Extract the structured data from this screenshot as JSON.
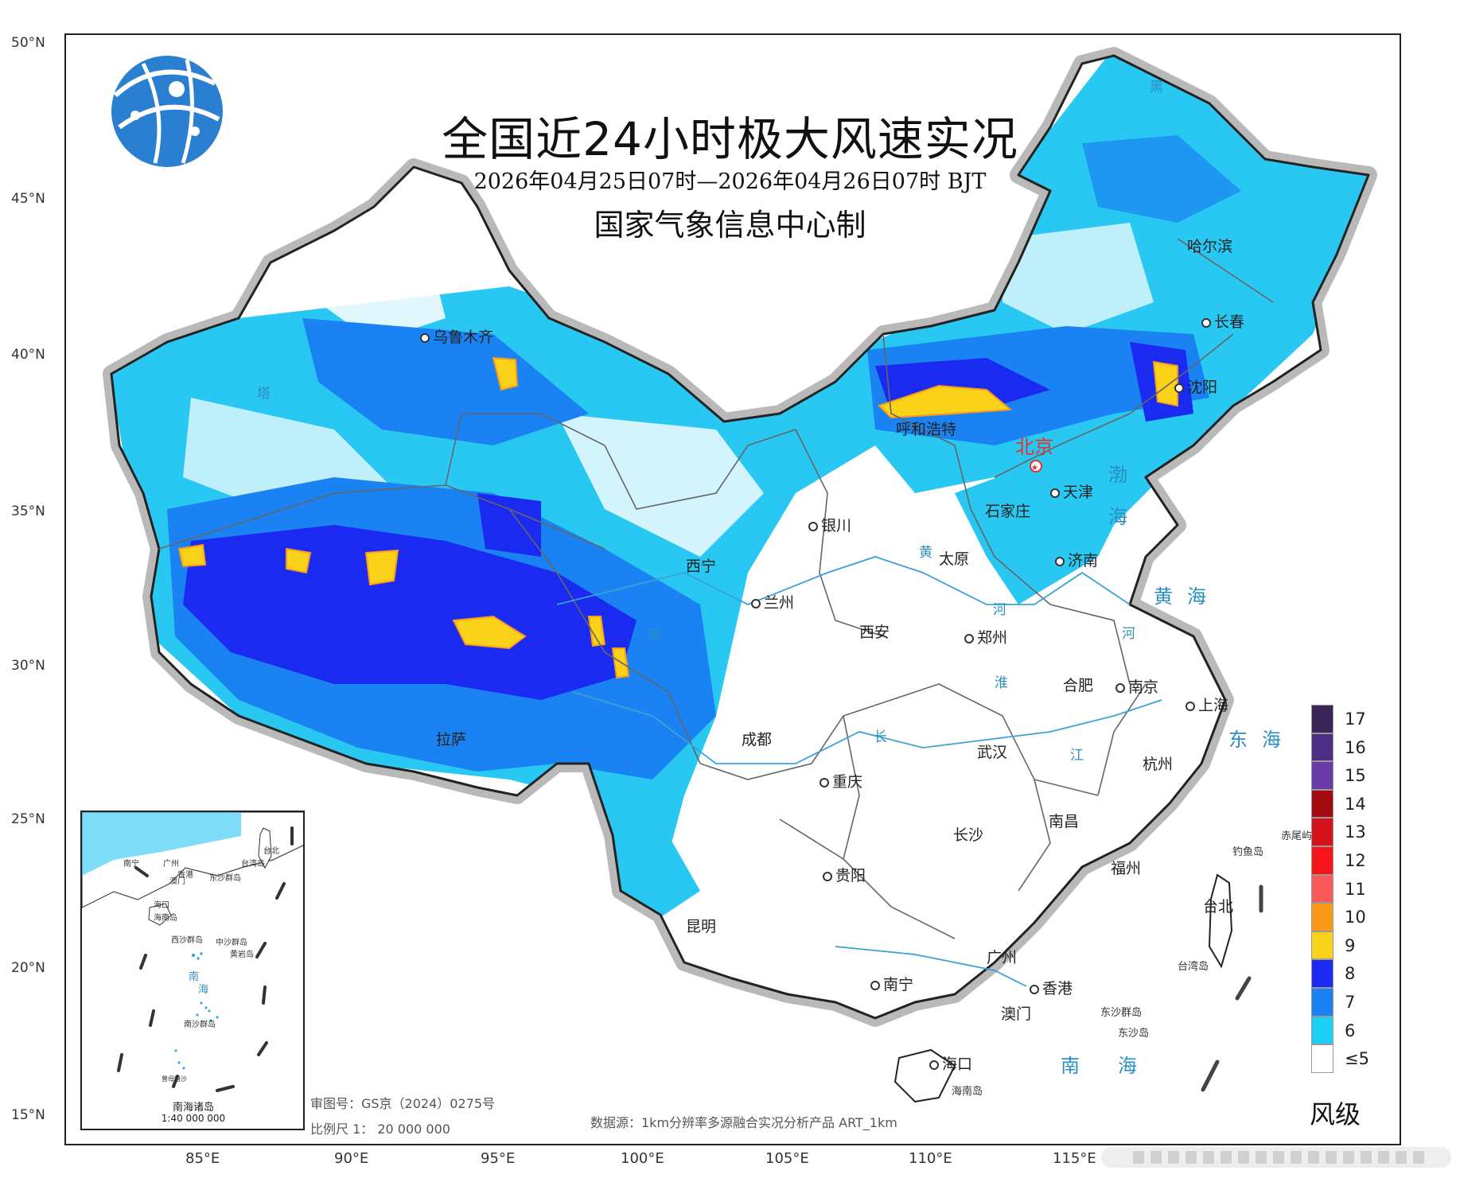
{
  "map": {
    "title": "全国近24小时极大风速实况",
    "time_range": "2026年04月25日07时—2026年04月26日07时 BJT",
    "producer": "国家气象信息中心制",
    "latitude_labels": [
      "50°N",
      "45°N",
      "40°N",
      "35°N",
      "30°N",
      "25°N",
      "20°N",
      "15°N"
    ],
    "longitude_labels": [
      "85°E",
      "90°E",
      "95°E",
      "100°E",
      "105°E",
      "110°E",
      "115°E"
    ],
    "capital": "北京",
    "cities": [
      "乌鲁木齐",
      "哈尔滨",
      "长春",
      "沈阳",
      "呼和浩特",
      "天津",
      "石家庄",
      "银川",
      "太原",
      "济南",
      "西宁",
      "兰州",
      "西安",
      "郑州",
      "合肥",
      "南京",
      "上海",
      "拉萨",
      "成都",
      "武汉",
      "杭州",
      "重庆",
      "长沙",
      "南昌",
      "贵阳",
      "福州",
      "台北",
      "昆明",
      "广州",
      "南宁",
      "香港",
      "澳门",
      "海口"
    ],
    "seas": [
      "渤",
      "海",
      "黄海",
      "东海",
      "南海"
    ],
    "sea_bohai": [
      "渤",
      "海"
    ],
    "sea_huanghai": "黄海",
    "sea_donghai": "东海",
    "sea_nanhai": "南海",
    "rivers": [
      "塔",
      "黄",
      "河",
      "黄",
      "淮",
      "长",
      "江",
      "黑",
      "河"
    ],
    "islands": [
      "钓鱼岛",
      "赤尾屿",
      "台湾岛",
      "东沙群岛",
      "东沙岛",
      "海南岛"
    ],
    "legend": {
      "title": "风级",
      "items": [
        {
          "label": "17",
          "color": "#3a2458"
        },
        {
          "label": "16",
          "color": "#4d2f86"
        },
        {
          "label": "15",
          "color": "#6a3aa8"
        },
        {
          "label": "14",
          "color": "#a30a10"
        },
        {
          "label": "13",
          "color": "#d3121a"
        },
        {
          "label": "12",
          "color": "#f71418"
        },
        {
          "label": "11",
          "color": "#fb5a5a"
        },
        {
          "label": "10",
          "color": "#fb9a1a"
        },
        {
          "label": "9",
          "color": "#fbd21a"
        },
        {
          "label": "8",
          "color": "#1a2af0"
        },
        {
          "label": "7",
          "color": "#1a82f2"
        },
        {
          "label": "6",
          "color": "#1ad0f4"
        },
        {
          "label": "≤5",
          "color": "#ffffff"
        }
      ]
    },
    "inset": {
      "title": "南海诸岛",
      "scale": "1:40 000 000",
      "labels": [
        "南宁",
        "广州",
        "香港",
        "台北",
        "澳门",
        "台湾岛",
        "东沙群岛",
        "海口",
        "海南岛",
        "西沙群岛",
        "中沙群岛",
        "黄岩岛",
        "南",
        "海",
        "南沙群岛",
        "曾母暗沙"
      ]
    },
    "review_no": "审图号：GS京（2024）0275号",
    "scale": "比例尺 1： 20 000 000",
    "data_source": "数据源：1km分辨率多源融合实况分析产品 ART_1km"
  }
}
